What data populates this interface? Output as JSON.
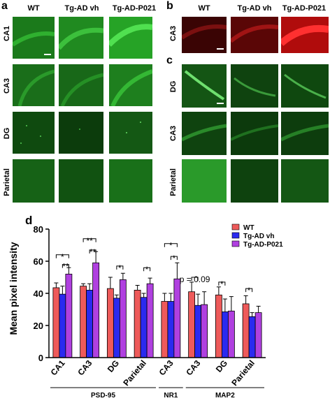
{
  "panels": {
    "a": {
      "letter": "a",
      "columns": [
        "WT",
        "Tg-AD vh",
        "Tg-AD-P021"
      ],
      "rows": [
        "CA1",
        "CA3",
        "DG",
        "Parietal"
      ]
    },
    "b": {
      "letter": "b",
      "columns": [
        "WT",
        "Tg-AD vh",
        "Tg-AD-P021"
      ],
      "rows": [
        "CA3"
      ]
    },
    "c": {
      "letter": "c",
      "rows": [
        "DG",
        "CA3",
        "Parietal"
      ]
    },
    "d": {
      "letter": "d"
    }
  },
  "colors": {
    "green_dark": "#0a3d0a",
    "green_mid": "#1f8a1f",
    "green_bright": "#3ad23a",
    "red_dark": "#4a0505",
    "red_bright": "#e01010",
    "wt": "#ee5a5a",
    "tg_vh": "#2a2af0",
    "tg_p021": "#b040e0"
  },
  "chart_data": {
    "type": "bar",
    "ylabel": "Mean pixel intensity",
    "ylim": [
      0,
      80
    ],
    "yticks": [
      "0",
      "20",
      "40",
      "60",
      "80"
    ],
    "categories": [
      "CA1",
      "CA3",
      "DG",
      "Parietal",
      "CA3",
      "CA3",
      "DG",
      "Parietal"
    ],
    "groups": [
      {
        "label": "PSD-95",
        "categories": [
          0,
          1,
          2,
          3
        ]
      },
      {
        "label": "NR1",
        "categories": [
          4
        ]
      },
      {
        "label": "MAP2",
        "categories": [
          5,
          6,
          7
        ]
      }
    ],
    "series": [
      {
        "name": "WT",
        "color": "#ee5a5a",
        "values": [
          43.5,
          44.5,
          43,
          42,
          35,
          41,
          39,
          33.5
        ],
        "errors": [
          3,
          1.5,
          7,
          3,
          5,
          6,
          5,
          5
        ]
      },
      {
        "name": "Tg-AD vh",
        "color": "#2a2af0",
        "values": [
          39.5,
          42,
          37,
          37.5,
          35,
          32.5,
          28.5,
          25.5
        ],
        "errors": [
          5,
          4,
          2,
          2.5,
          5,
          7,
          8,
          2.5
        ]
      },
      {
        "name": "Tg-AD-P021",
        "color": "#b040e0",
        "values": [
          52,
          59,
          48.5,
          46,
          49,
          33,
          29,
          28
        ],
        "errors": [
          4,
          7,
          4,
          3.5,
          10,
          8,
          9,
          4
        ]
      }
    ],
    "legend_position": "top-right",
    "annotations": {
      "star1": "*",
      "star2": "**",
      "p_value": "p = 0.09"
    }
  }
}
